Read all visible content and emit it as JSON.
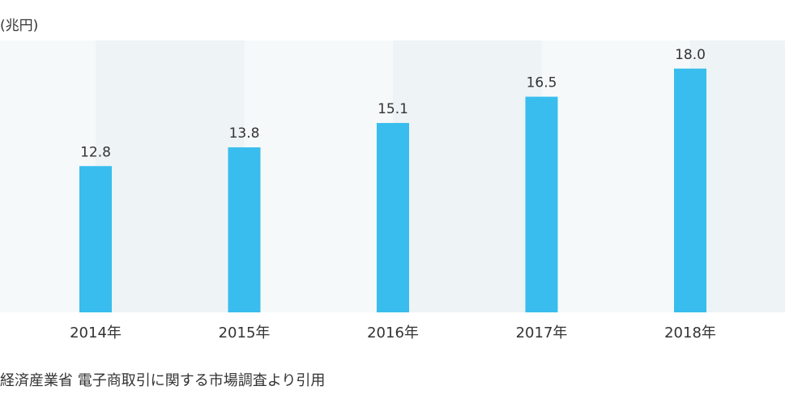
{
  "chart_data": {
    "type": "bar",
    "unit": "(兆円)",
    "categories": [
      "2014年",
      "2015年",
      "2016年",
      "2017年",
      "2018年"
    ],
    "values": [
      12.8,
      13.8,
      15.1,
      16.5,
      18.0
    ],
    "value_labels": [
      "12.8",
      "13.8",
      "15.1",
      "16.5",
      "18.0"
    ],
    "color": "#38bdee",
    "ylim": [
      5,
      19.5
    ],
    "source": "経済産業省 電子商取引に関する市場調査より引用"
  }
}
